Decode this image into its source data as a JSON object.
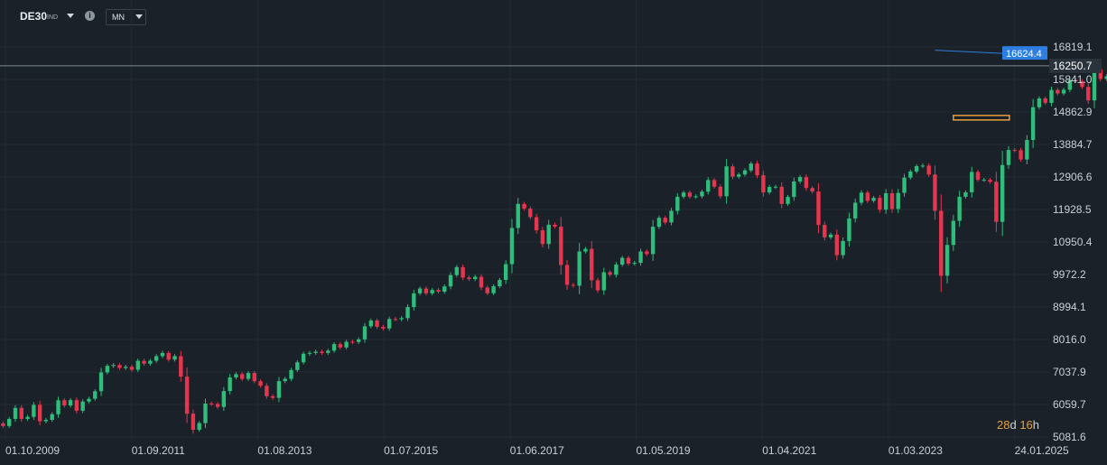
{
  "header": {
    "symbol": "DE30",
    "instrument_type": "IND",
    "info_icon": "info-icon",
    "timeframe": "MN"
  },
  "countdown": {
    "days": "28",
    "days_unit": "d",
    "hours": "16",
    "hours_unit": "h"
  },
  "colors": {
    "background": "#1a2128",
    "up": "#2ebd7a",
    "down": "#e6364f",
    "grid": "#232c34",
    "level_line": "#2d7ee0",
    "price_line": "#7f8b95",
    "marker": "#e8a03c"
  },
  "chart_data": {
    "type": "candlestick",
    "y_ticks": [
      16819.1,
      15841.0,
      14862.9,
      13884.7,
      12906.6,
      11928.5,
      10950.4,
      9972.2,
      8994.1,
      8016.0,
      7037.9,
      6059.7,
      5081.6
    ],
    "ylim": [
      5081.6,
      16819.1
    ],
    "x_ticks": [
      "01.10.2009",
      "01.09.2011",
      "01.08.2013",
      "01.07.2015",
      "01.06.2017",
      "01.05.2019",
      "01.04.2021",
      "01.03.2023",
      "24.01.2025"
    ],
    "current_price": 16250.7,
    "level_line": 16624.4,
    "grid": true,
    "closes": [
      5413,
      5626,
      5957,
      5627,
      5688,
      6049,
      5557,
      5598,
      5767,
      6188,
      6032,
      6192,
      5872,
      6148,
      6232,
      6460,
      7025,
      7223,
      7246,
      7159,
      7195,
      7105,
      7375,
      7288,
      7376,
      7514,
      7612,
      7410,
      7514,
      6898,
      5784,
      5299,
      5500,
      6088,
      6077,
      5987,
      6465,
      6874,
      6973,
      6829,
      7008,
      6761,
      6623,
      6308,
      6260,
      6764,
      6832,
      7097,
      7330,
      7587,
      7612,
      7650,
      7612,
      7680,
      7877,
      7776,
      7947,
      7942,
      8019,
      8414,
      8587,
      8397,
      8348,
      8632,
      8625,
      8659,
      8993,
      9403,
      9550,
      9405,
      9507,
      9456,
      9613,
      9953,
      10195,
      9881,
      9834,
      9902,
      9580,
      9407,
      9618,
      9809,
      10283,
      11371,
      12096,
      11954,
      11697,
      11301,
      10890,
      11470,
      11413,
      10259,
      9661,
      9634,
      10665,
      10743,
      9798,
      9495,
      10040,
      9963,
      10270,
      10474,
      10301,
      10322,
      10665,
      10587,
      11408,
      11679,
      11537,
      11888,
      12311,
      12438,
      12313,
      12325,
      12464,
      12814,
      12613,
      12326,
      13224,
      12917,
      12982,
      13104,
      13310,
      12958,
      12442,
      12605,
      12613,
      12096,
      12306,
      12771,
      12904,
      12575,
      12468,
      11465,
      11089,
      11173,
      10553,
      10979,
      11659,
      12132,
      12436,
      12189,
      12279,
      11922,
      12418,
      11944,
      12428,
      12887,
      13072,
      13233,
      13249,
      12981,
      11890,
      9935,
      10862,
      11587,
      12311,
      12444,
      13058,
      12821,
      12821,
      12762,
      11556,
      13266,
      13719,
      13714,
      13433,
      14021,
      15005,
      15269,
      15135,
      15526,
      15420,
      15531,
      15820,
      15789,
      15616,
      15210,
      16145,
      15856,
      15936,
      15421,
      14340,
      14388,
      14118,
      13592,
      13860,
      12833,
      13484,
      12113,
      12247,
      13251,
      14322,
      13984,
      15120,
      15345,
      15680,
      15639,
      15936,
      15810,
      15665,
      16111,
      16221,
      16397,
      16425,
      15970,
      15898,
      16300,
      16600,
      15240,
      14900,
      16250.7
    ]
  }
}
